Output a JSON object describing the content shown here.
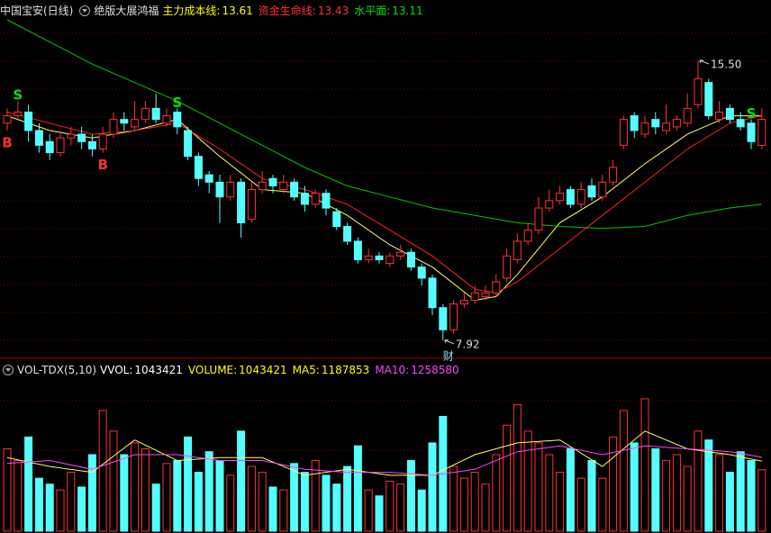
{
  "chart_data": [
    {
      "type": "candlestick",
      "title": "中国宝安(日线)",
      "subtitle": "绝版大展鸿福",
      "readouts": [
        {
          "label": "主力成本线:",
          "value": 13.61,
          "color": "#ffff00"
        },
        {
          "label": "资金生命线:",
          "value": 13.43,
          "color": "#ff3232"
        },
        {
          "label": "水平面:",
          "value": 13.11,
          "color": "#00e600"
        }
      ],
      "ylim": [
        7.5,
        16.6
      ],
      "up_color": "#ff3232",
      "down_color": "#54ffff",
      "open": [
        13.8,
        14.0,
        14.1,
        13.6,
        13.3,
        13.0,
        13.4,
        13.5,
        13.3,
        13.1,
        13.5,
        13.9,
        13.7,
        13.9,
        14.2,
        13.8,
        14.1,
        13.6,
        12.9,
        12.4,
        12.2,
        11.8,
        12.2,
        11.2,
        12.0,
        12.3,
        12.0,
        12.2,
        11.9,
        11.6,
        11.9,
        11.4,
        11.0,
        10.6,
        10.1,
        10.2,
        10.0,
        10.2,
        10.3,
        9.9,
        9.6,
        8.8,
        8.2,
        8.9,
        9.0,
        9.1,
        9.2,
        9.6,
        10.1,
        10.6,
        10.9,
        11.5,
        11.7,
        12.0,
        11.6,
        12.1,
        11.8,
        12.2,
        13.2,
        14.0,
        13.5,
        13.9,
        13.6,
        13.7,
        13.8,
        14.3,
        14.9,
        13.9,
        14.2,
        13.9,
        13.8,
        13.2
      ],
      "high": [
        14.2,
        14.4,
        14.3,
        13.8,
        13.5,
        13.6,
        13.7,
        13.7,
        13.5,
        13.7,
        14.1,
        14.1,
        14.4,
        14.4,
        14.6,
        14.2,
        14.2,
        13.7,
        13.0,
        12.5,
        12.4,
        12.4,
        12.3,
        12.2,
        12.5,
        12.4,
        12.4,
        12.3,
        12.1,
        12.0,
        12.0,
        11.5,
        11.1,
        10.7,
        10.4,
        10.3,
        10.3,
        10.5,
        10.4,
        10.0,
        9.7,
        8.9,
        9.0,
        9.2,
        9.4,
        9.4,
        9.7,
        10.4,
        10.8,
        11.1,
        11.8,
        12.0,
        12.1,
        12.1,
        12.2,
        12.3,
        12.4,
        12.8,
        14.0,
        14.1,
        14.0,
        14.1,
        14.3,
        14.0,
        14.6,
        15.5,
        15.0,
        14.4,
        14.3,
        14.1,
        13.9,
        14.2
      ],
      "low": [
        13.6,
        13.9,
        13.3,
        13.0,
        12.8,
        12.9,
        13.2,
        13.1,
        12.9,
        13.0,
        13.4,
        13.6,
        13.6,
        13.8,
        13.8,
        13.7,
        13.5,
        12.8,
        12.1,
        11.9,
        11.1,
        11.7,
        10.7,
        11.1,
        11.9,
        11.9,
        11.9,
        11.7,
        11.4,
        11.5,
        11.3,
        10.9,
        10.5,
        10.0,
        10.0,
        10.0,
        9.9,
        10.1,
        9.8,
        9.4,
        8.6,
        7.92,
        8.1,
        8.8,
        8.9,
        9.0,
        9.1,
        9.5,
        10.0,
        10.5,
        10.8,
        11.4,
        11.6,
        11.5,
        11.5,
        11.7,
        11.7,
        12.1,
        13.1,
        13.4,
        13.4,
        13.5,
        13.5,
        13.6,
        13.7,
        14.2,
        13.9,
        13.8,
        13.8,
        13.6,
        13.1,
        13.1
      ],
      "close": [
        14.0,
        14.1,
        13.6,
        13.2,
        13.0,
        13.4,
        13.5,
        13.3,
        13.1,
        13.5,
        13.9,
        13.8,
        13.9,
        14.2,
        13.9,
        14.0,
        13.7,
        12.9,
        12.3,
        12.2,
        11.8,
        12.2,
        11.1,
        12.0,
        12.2,
        12.1,
        12.2,
        11.8,
        11.6,
        11.9,
        11.5,
        11.0,
        10.6,
        10.1,
        10.2,
        10.1,
        10.2,
        10.3,
        9.9,
        9.6,
        8.8,
        8.2,
        8.9,
        9.0,
        9.2,
        9.2,
        9.5,
        10.2,
        10.6,
        10.9,
        11.5,
        11.7,
        11.9,
        11.6,
        12.0,
        11.8,
        12.2,
        12.6,
        13.9,
        13.6,
        13.8,
        13.7,
        13.8,
        13.9,
        14.2,
        15.0,
        14.0,
        14.1,
        13.9,
        13.7,
        13.3,
        13.9
      ],
      "lines": [
        {
          "color": "#ffff66",
          "x": [
            0,
            4,
            8,
            12,
            16,
            20,
            24,
            28,
            32,
            36,
            40,
            44,
            46,
            48,
            52,
            56,
            60,
            64,
            68,
            71
          ],
          "values": [
            14.0,
            13.6,
            13.4,
            13.6,
            13.9,
            12.9,
            12.0,
            11.9,
            11.3,
            10.5,
            9.9,
            9.0,
            9.1,
            9.7,
            11.1,
            11.8,
            12.7,
            13.5,
            14.0,
            14.0
          ]
        },
        {
          "color": "#ff2020",
          "x": [
            0,
            4,
            8,
            12,
            16,
            20,
            24,
            28,
            32,
            36,
            40,
            44,
            46,
            48,
            52,
            56,
            60,
            64,
            68,
            71
          ],
          "values": [
            14.1,
            13.8,
            13.5,
            13.6,
            13.8,
            13.1,
            12.3,
            12.0,
            11.6,
            10.9,
            10.2,
            9.3,
            9.2,
            9.5,
            10.4,
            11.3,
            12.2,
            13.1,
            13.8,
            14.0
          ]
        },
        {
          "color": "#00c800",
          "x": [
            0,
            4,
            8,
            12,
            16,
            20,
            24,
            28,
            32,
            36,
            40,
            44,
            48,
            52,
            56,
            60,
            64,
            68,
            71
          ],
          "values": [
            16.6,
            16.0,
            15.4,
            14.9,
            14.4,
            13.8,
            13.2,
            12.6,
            12.1,
            11.8,
            11.5,
            11.3,
            11.1,
            11.0,
            10.95,
            11.0,
            11.3,
            11.5,
            11.6
          ]
        }
      ],
      "signals": [
        "B",
        "S",
        null,
        null,
        null,
        null,
        null,
        null,
        null,
        "B",
        null,
        null,
        null,
        null,
        null,
        null,
        "S",
        null,
        null,
        null,
        null,
        null,
        null,
        null,
        null,
        null,
        null,
        null,
        null,
        null,
        null,
        null,
        null,
        null,
        null,
        null,
        null,
        null,
        null,
        null,
        null,
        null,
        null,
        null,
        null,
        null,
        null,
        null,
        null,
        null,
        null,
        null,
        null,
        null,
        null,
        null,
        null,
        null,
        null,
        null,
        null,
        null,
        null,
        null,
        null,
        null,
        null,
        null,
        null,
        null,
        "S",
        null
      ],
      "signal_colors": {
        "B": "#ff3232",
        "S": "#00e600"
      },
      "signal_position": {
        "B": "below",
        "S": "above"
      },
      "high_labels": [
        null,
        null,
        null,
        null,
        null,
        null,
        null,
        null,
        null,
        null,
        null,
        null,
        null,
        null,
        null,
        null,
        null,
        null,
        null,
        null,
        null,
        null,
        null,
        null,
        null,
        null,
        null,
        null,
        null,
        null,
        null,
        null,
        null,
        null,
        null,
        null,
        null,
        null,
        null,
        null,
        null,
        null,
        null,
        null,
        null,
        null,
        null,
        null,
        null,
        null,
        null,
        null,
        null,
        null,
        null,
        null,
        null,
        null,
        null,
        null,
        null,
        null,
        null,
        null,
        null,
        "15.50",
        null,
        null,
        null,
        null,
        null,
        null
      ],
      "low_labels": [
        null,
        null,
        null,
        null,
        null,
        null,
        null,
        null,
        null,
        null,
        null,
        null,
        null,
        null,
        null,
        null,
        null,
        null,
        null,
        null,
        null,
        null,
        null,
        null,
        null,
        null,
        null,
        null,
        null,
        null,
        null,
        null,
        null,
        null,
        null,
        null,
        null,
        null,
        null,
        null,
        null,
        "7.92",
        null,
        null,
        null,
        null,
        null,
        null,
        null,
        null,
        null,
        null,
        null,
        null,
        null,
        null,
        null,
        null,
        null,
        null,
        null,
        null,
        null,
        null,
        null,
        null,
        null,
        null,
        null,
        null,
        null,
        null
      ],
      "event_labels": [
        null,
        null,
        null,
        null,
        null,
        null,
        null,
        null,
        null,
        null,
        null,
        null,
        null,
        null,
        null,
        null,
        null,
        null,
        null,
        null,
        null,
        null,
        null,
        null,
        null,
        null,
        null,
        null,
        null,
        null,
        null,
        null,
        null,
        null,
        null,
        null,
        null,
        null,
        null,
        null,
        null,
        "财",
        null,
        null,
        null,
        null,
        null,
        null,
        null,
        null,
        null,
        null,
        null,
        null,
        null,
        null,
        null,
        null,
        null,
        null,
        null,
        null,
        null,
        null,
        null,
        null,
        null,
        null,
        null,
        null,
        null,
        null
      ]
    },
    {
      "type": "volume",
      "title": "VOL-TDX(5,10)",
      "readouts": [
        {
          "label": "VVOL:",
          "value": 1043421,
          "color": "#ffffff"
        },
        {
          "label": "VOLUME:",
          "value": 1043421,
          "color": "#ffff00"
        },
        {
          "label": "MA5:",
          "value": 1187853,
          "color": "#ffff00"
        },
        {
          "label": "MA10:",
          "value": 1258580,
          "color": "#ff44ff"
        }
      ],
      "ylim": [
        0,
        2600000
      ],
      "values": [
        1400000,
        1200000,
        1600000,
        900000,
        800000,
        700000,
        1000000,
        750000,
        1300000,
        2050000,
        1700000,
        1300000,
        1500000,
        1400000,
        800000,
        1150000,
        1200000,
        1600000,
        1000000,
        1350000,
        1200000,
        950000,
        1700000,
        1100000,
        1000000,
        750000,
        700000,
        1150000,
        1000000,
        1200000,
        950000,
        800000,
        1100000,
        1450000,
        700000,
        600000,
        850000,
        800000,
        1200000,
        700000,
        1500000,
        1950000,
        1100000,
        900000,
        1000000,
        800000,
        1300000,
        1800000,
        2150000,
        1700000,
        1500000,
        1300000,
        1000000,
        1400000,
        900000,
        1200000,
        900000,
        1600000,
        2050000,
        1500000,
        2250000,
        1400000,
        1200000,
        1300000,
        1100000,
        1700000,
        1550000,
        1300000,
        1000000,
        1350000,
        1200000,
        1043421
      ],
      "lines": [
        {
          "color": "#ffff66",
          "x": [
            0,
            4,
            8,
            12,
            16,
            20,
            24,
            28,
            32,
            36,
            40,
            44,
            48,
            52,
            56,
            60,
            64,
            68,
            71
          ],
          "values": [
            1250000,
            1100000,
            1000000,
            1550000,
            1200000,
            1250000,
            1250000,
            950000,
            1050000,
            950000,
            950000,
            1300000,
            1500000,
            1550000,
            1100000,
            1700000,
            1400000,
            1300000,
            1187853
          ]
        },
        {
          "color": "#ff44ff",
          "x": [
            0,
            4,
            8,
            12,
            16,
            20,
            24,
            28,
            32,
            36,
            40,
            44,
            48,
            52,
            56,
            60,
            64,
            68,
            71
          ],
          "values": [
            1150000,
            1200000,
            1050000,
            1300000,
            1300000,
            1200000,
            1200000,
            1050000,
            1000000,
            1000000,
            950000,
            1050000,
            1350000,
            1450000,
            1300000,
            1450000,
            1400000,
            1350000,
            1258580
          ]
        }
      ]
    }
  ]
}
